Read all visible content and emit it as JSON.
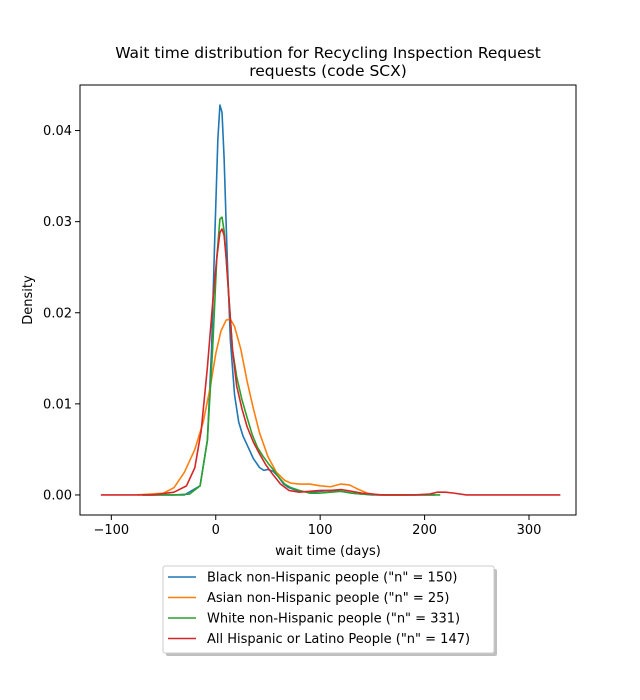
{
  "chart_data": {
    "type": "line",
    "title": "Wait time distribution  for Recycling Inspection Request requests (code SCX)",
    "title_lines": [
      "Wait time distribution  for Recycling Inspection Request",
      "requests (code SCX)"
    ],
    "xlabel": "wait time (days)",
    "ylabel": "Density",
    "xlim": [
      -130,
      345
    ],
    "ylim": [
      -0.0022,
      0.045
    ],
    "x_ticks": [
      -100,
      0,
      100,
      200,
      300
    ],
    "x_tick_labels": [
      "−100",
      "0",
      "100",
      "200",
      "300"
    ],
    "y_ticks": [
      0.0,
      0.01,
      0.02,
      0.03,
      0.04
    ],
    "y_tick_labels": [
      "0.00",
      "0.01",
      "0.02",
      "0.03",
      "0.04"
    ],
    "grid": false,
    "legend_position": "bottom-center",
    "series": [
      {
        "name": "Black non-Hispanic people (\"n\" = 150)",
        "color": "#1f77b4",
        "x": [
          -70,
          -30,
          -15,
          -8,
          -4,
          -1,
          2,
          4,
          6,
          8,
          11,
          14,
          18,
          22,
          26,
          30,
          36,
          42,
          46,
          50,
          55,
          60,
          65,
          70,
          80,
          90,
          100,
          110,
          120,
          130,
          140,
          150,
          170,
          190,
          210
        ],
        "y": [
          0.0,
          0.0,
          0.001,
          0.006,
          0.016,
          0.028,
          0.039,
          0.0428,
          0.042,
          0.037,
          0.026,
          0.017,
          0.011,
          0.008,
          0.0065,
          0.0055,
          0.004,
          0.003,
          0.0027,
          0.0028,
          0.0026,
          0.002,
          0.0012,
          0.0008,
          0.0004,
          0.0003,
          0.0004,
          0.0005,
          0.0004,
          0.0002,
          0.0001,
          0.0,
          0.0,
          0.0,
          0.0
        ]
      },
      {
        "name": "Asian non-Hispanic people (\"n\" = 25)",
        "color": "#ff7f0e",
        "x": [
          -75,
          -50,
          -40,
          -30,
          -20,
          -12,
          -5,
          0,
          5,
          10,
          14,
          18,
          24,
          30,
          36,
          42,
          50,
          58,
          66,
          72,
          80,
          90,
          100,
          110,
          120,
          128,
          135,
          145,
          155,
          170,
          185
        ],
        "y": [
          0.0,
          0.0002,
          0.0008,
          0.0025,
          0.005,
          0.008,
          0.012,
          0.0155,
          0.018,
          0.0192,
          0.0193,
          0.0185,
          0.016,
          0.0125,
          0.0095,
          0.0068,
          0.0042,
          0.0025,
          0.0016,
          0.0013,
          0.0012,
          0.0012,
          0.001,
          0.0009,
          0.0012,
          0.0011,
          0.0007,
          0.0002,
          0.0,
          0.0,
          0.0
        ]
      },
      {
        "name": "White non-Hispanic people (\"n\" = 331)",
        "color": "#2ca02c",
        "x": [
          -70,
          -40,
          -25,
          -15,
          -8,
          -3,
          1,
          4,
          6,
          8,
          10,
          13,
          16,
          20,
          25,
          30,
          35,
          40,
          45,
          50,
          55,
          60,
          66,
          72,
          80,
          90,
          100,
          110,
          120,
          130,
          140,
          160,
          190,
          215
        ],
        "y": [
          0.0,
          0.0,
          0.0001,
          0.001,
          0.006,
          0.016,
          0.026,
          0.0303,
          0.0305,
          0.029,
          0.026,
          0.021,
          0.016,
          0.013,
          0.0105,
          0.0085,
          0.0066,
          0.0052,
          0.0043,
          0.0035,
          0.0028,
          0.002,
          0.0012,
          0.0008,
          0.0005,
          0.0002,
          0.0002,
          0.0003,
          0.0004,
          0.0002,
          0.0001,
          0.0,
          0.0,
          0.0
        ]
      },
      {
        "name": "All Hispanic or Latino People (\"n\" = 147)",
        "color": "#d62728",
        "x": [
          -110,
          -60,
          -40,
          -28,
          -20,
          -14,
          -8,
          -3,
          1,
          4,
          6,
          8,
          10,
          13,
          16,
          20,
          25,
          30,
          36,
          42,
          48,
          55,
          62,
          70,
          80,
          90,
          100,
          110,
          120,
          130,
          140,
          160,
          190,
          205,
          212,
          220,
          228,
          240,
          260,
          300,
          330
        ],
        "y": [
          0.0,
          0.0,
          0.0003,
          0.001,
          0.003,
          0.007,
          0.014,
          0.021,
          0.026,
          0.0288,
          0.0292,
          0.0285,
          0.026,
          0.021,
          0.016,
          0.012,
          0.0095,
          0.0075,
          0.0058,
          0.0045,
          0.0033,
          0.0022,
          0.0012,
          0.0005,
          0.0003,
          0.0004,
          0.0005,
          0.0005,
          0.0006,
          0.0004,
          0.0002,
          0.0,
          0.0,
          0.0001,
          0.0003,
          0.0003,
          0.0002,
          0.0,
          0.0,
          0.0,
          0.0
        ]
      }
    ]
  }
}
